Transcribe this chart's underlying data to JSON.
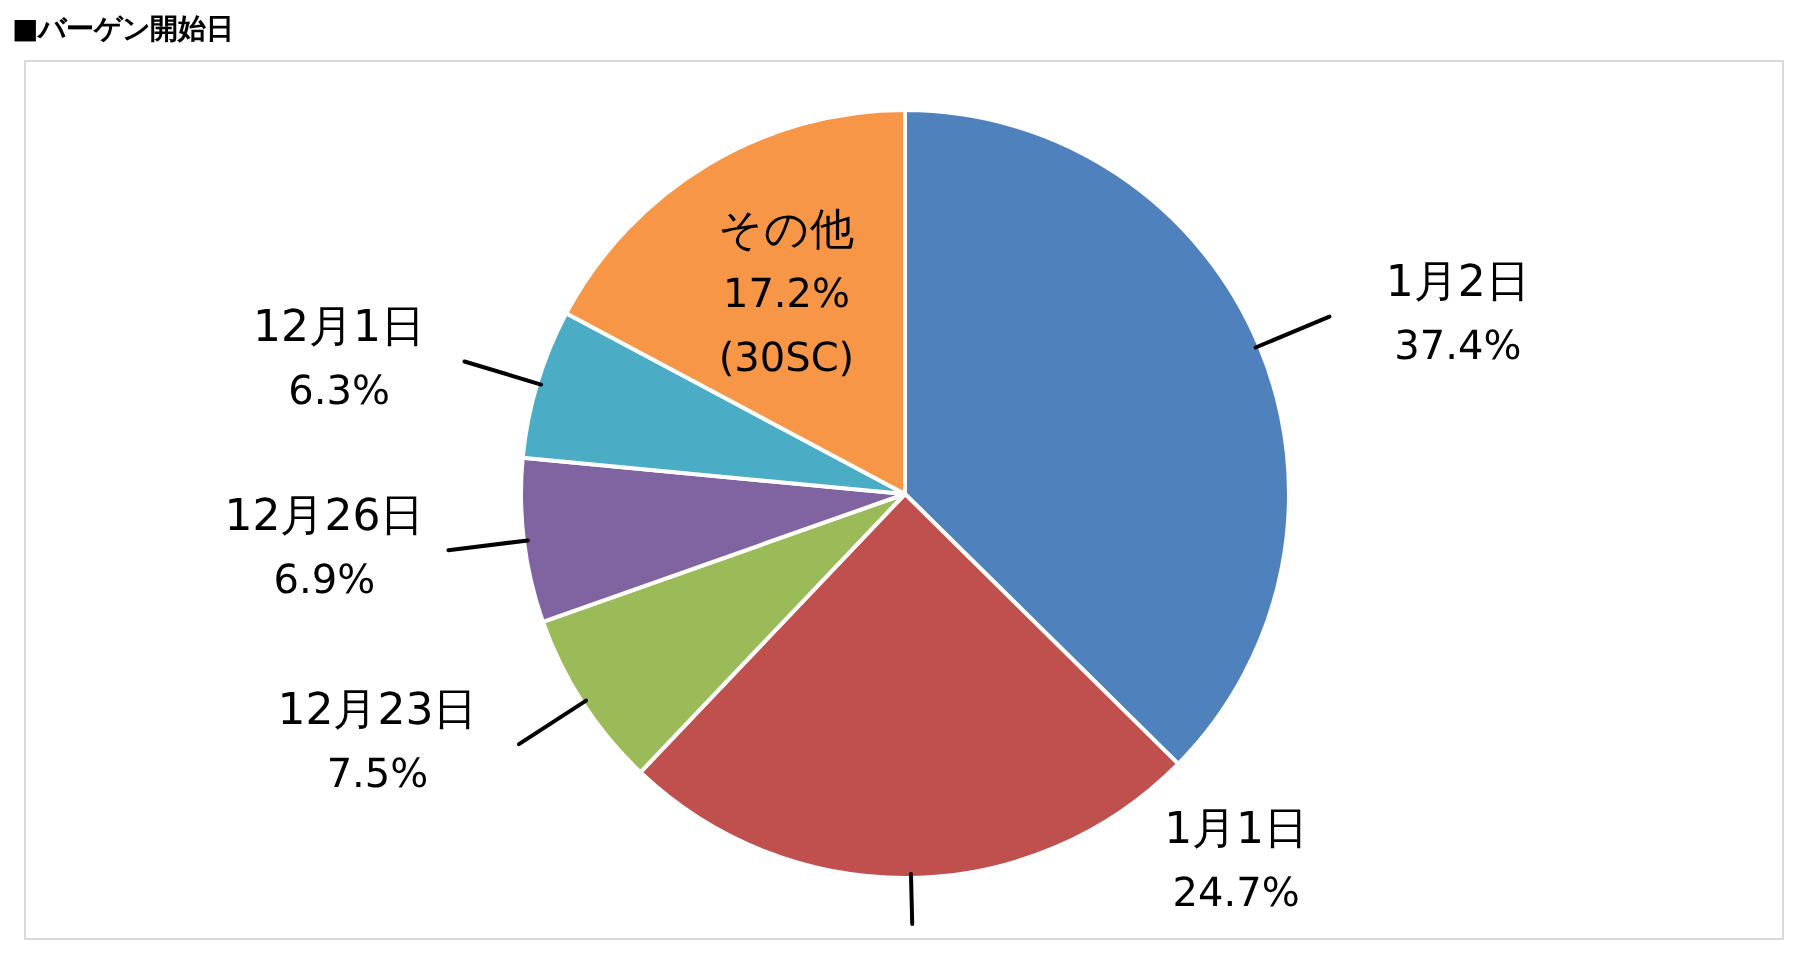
{
  "chart_data": {
    "type": "pie",
    "title": "■バーゲン開始日",
    "categories": [
      "1月2日",
      "1月1日",
      "12月23日",
      "12月26日",
      "12月1日",
      "その他"
    ],
    "values": [
      37.4,
      24.7,
      7.5,
      6.9,
      6.3,
      17.2
    ],
    "colors": [
      "#4f81bd",
      "#c0504d",
      "#9bbb59",
      "#8064a2",
      "#4bacc6",
      "#f79646"
    ],
    "value_labels": [
      "37.4%",
      "24.7%",
      "7.5%",
      "6.9%",
      "6.3%",
      "17.2%"
    ],
    "annotations": [
      {
        "text": "(30SC)",
        "x": "その他"
      }
    ],
    "legend": false
  }
}
